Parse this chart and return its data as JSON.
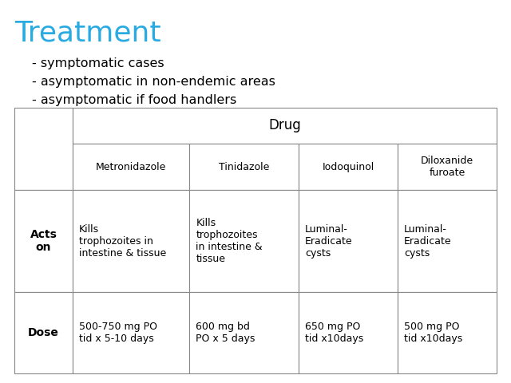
{
  "title": "Treatment",
  "title_color": "#29ABE2",
  "bullets": [
    "- symptomatic cases",
    "- asymptomatic in non-endemic areas",
    "- asymptomatic if food handlers"
  ],
  "bullet_color": "#000000",
  "bg_color": "#ffffff",
  "table": {
    "col_header_span": "Drug",
    "col_headers": [
      "Metronidazole",
      "Tinidazole",
      "Iodoquinol",
      "Diloxanide\nfuroate"
    ],
    "row_headers": [
      "Acts\non",
      "Dose"
    ],
    "cells": [
      [
        "Kills\ntrophozoites in\nintestine & tissue",
        "Kills\ntrophozoites\nin intestine &\ntissue",
        "Luminal-\nEradicate\ncysts",
        "Luminal-\nEradicate\ncysts"
      ],
      [
        "500-750 mg PO\ntid x 5-10 days",
        "600 mg bd\nPO x 5 days",
        "650 mg PO\ntid x10days",
        "500 mg PO\ntid x10days"
      ]
    ]
  },
  "title_fontsize": 26,
  "bullet_fontsize": 11.5,
  "col_span_fontsize": 12,
  "col_header_fontsize": 9,
  "row_header_fontsize": 10,
  "cell_fontsize": 9
}
